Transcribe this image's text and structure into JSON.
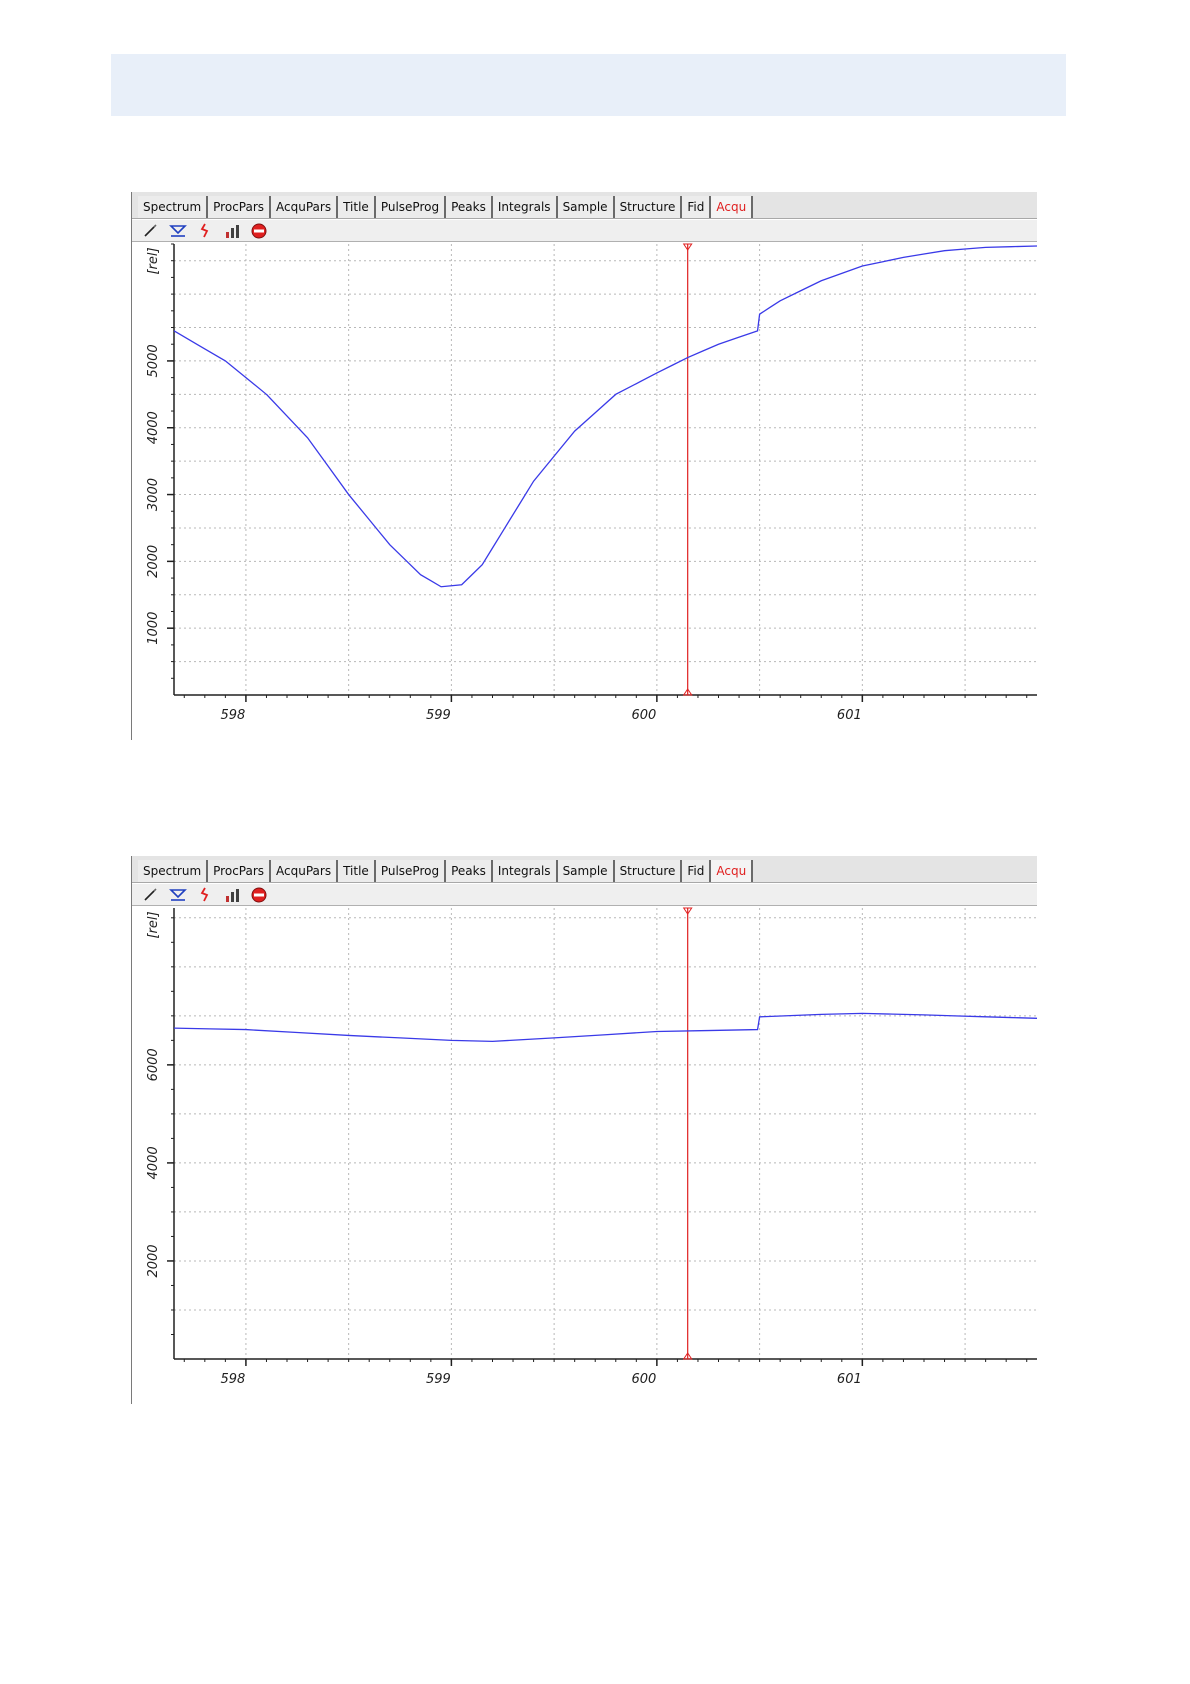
{
  "tabs": [
    {
      "label": "Spectrum"
    },
    {
      "label": "ProcPars"
    },
    {
      "label": "AcquPars"
    },
    {
      "label": "Title"
    },
    {
      "label": "PulseProg"
    },
    {
      "label": "Peaks"
    },
    {
      "label": "Integrals"
    },
    {
      "label": "Sample"
    },
    {
      "label": "Structure"
    },
    {
      "label": "Fid"
    },
    {
      "label": "Acqu",
      "active": true
    }
  ],
  "toolbar_icons": [
    "pencil-icon",
    "shield-icon",
    "arrow-down-icon",
    "bar-chart-icon",
    "stop-icon"
  ],
  "colors": {
    "trace": "#3a3ae8",
    "cursor": "#e02020",
    "grid": "#b8b8b8",
    "active_tab": "#e02020",
    "banner": "#e8eff9"
  },
  "charts": [
    {
      "chart_data": {
        "type": "line",
        "ylabel": "[rel]",
        "xlim": [
          597.65,
          601.85
        ],
        "ylim": [
          0,
          6750
        ],
        "x_ticks": [
          598,
          599,
          600,
          601
        ],
        "x_tick_labels": [
          "598",
          "599",
          "600",
          "601"
        ],
        "y_ticks": [
          1000,
          2000,
          3000,
          4000,
          5000
        ],
        "y_tick_labels": [
          "1000",
          "2000",
          "3000",
          "4000",
          "5000"
        ],
        "cursor_x": 600.15,
        "grid": true,
        "series": [
          {
            "x": [
              597.65,
              597.9,
              598.1,
              598.3,
              598.5,
              598.7,
              598.85,
              598.95,
              599.05,
              599.15,
              599.25,
              599.4,
              599.6,
              599.8,
              600.0,
              600.15,
              600.3,
              600.49,
              600.5,
              600.6,
              600.8,
              601.0,
              601.2,
              601.4,
              601.6,
              601.85
            ],
            "y": [
              5450,
              5000,
              4500,
              3850,
              3000,
              2250,
              1800,
              1620,
              1650,
              1950,
              2450,
              3200,
              3950,
              4500,
              4820,
              5050,
              5250,
              5450,
              5700,
              5900,
              6200,
              6420,
              6550,
              6650,
              6700,
              6720
            ]
          }
        ]
      }
    },
    {
      "chart_data": {
        "type": "line",
        "ylabel": "[rel]",
        "xlim": [
          597.65,
          601.85
        ],
        "ylim": [
          0,
          9200
        ],
        "x_ticks": [
          598,
          599,
          600,
          601
        ],
        "x_tick_labels": [
          "598",
          "599",
          "600",
          "601"
        ],
        "y_ticks": [
          2000,
          4000,
          6000
        ],
        "y_tick_labels": [
          "2000",
          "4000",
          "6000"
        ],
        "cursor_x": 600.15,
        "grid": true,
        "series": [
          {
            "x": [
              597.65,
              598.0,
              598.5,
              599.0,
              599.2,
              599.5,
              600.0,
              600.49,
              600.5,
              600.8,
              601.0,
              601.3,
              601.6,
              601.85
            ],
            "y": [
              6750,
              6720,
              6600,
              6500,
              6480,
              6550,
              6680,
              6720,
              6980,
              7030,
              7050,
              7020,
              6980,
              6950
            ]
          }
        ]
      }
    }
  ]
}
